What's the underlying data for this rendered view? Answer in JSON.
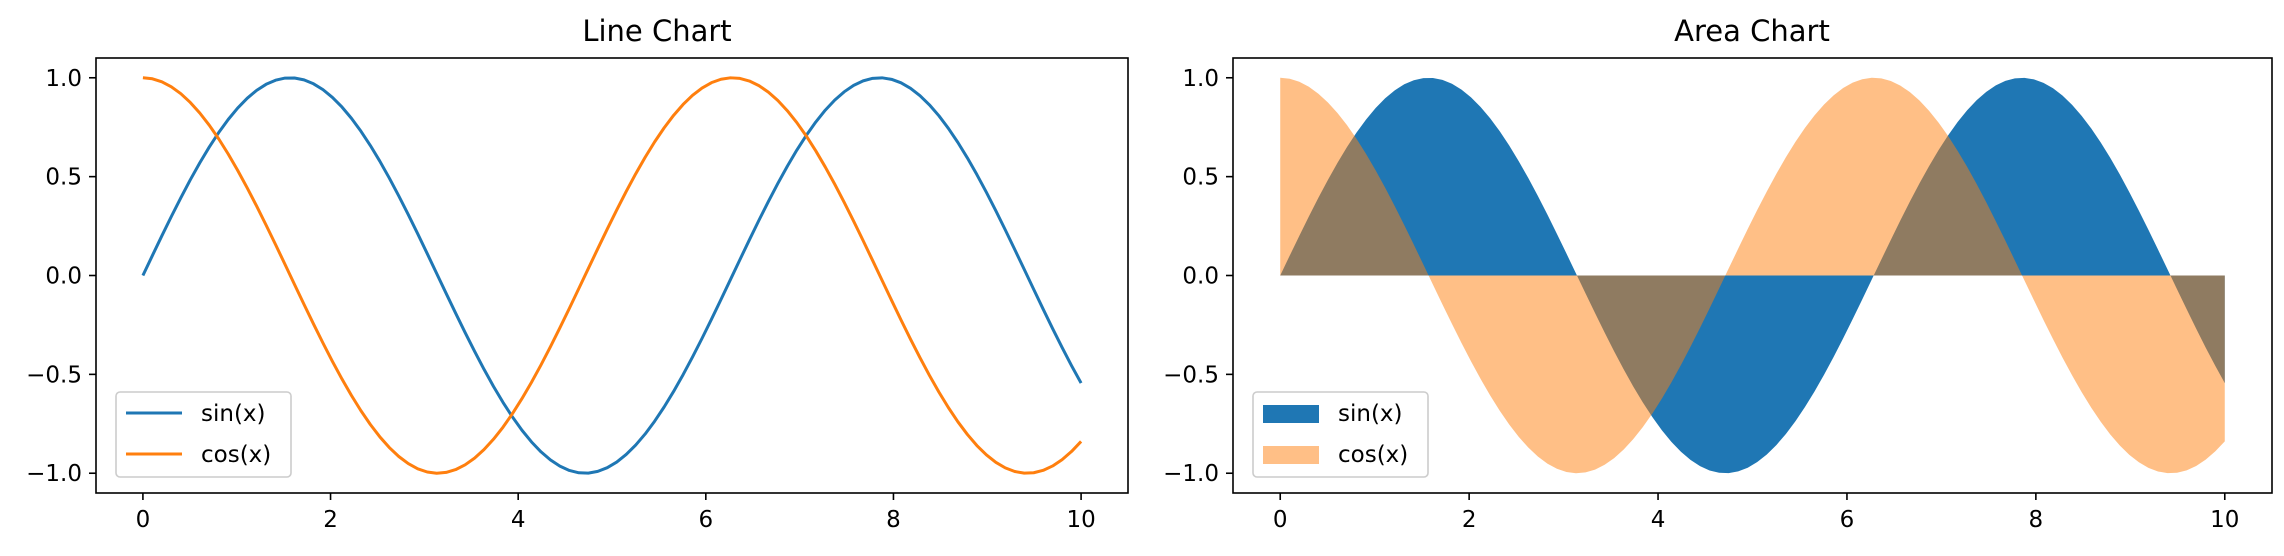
{
  "chart_data": [
    {
      "type": "line",
      "title": "Line Chart",
      "xlabel": "",
      "ylabel": "",
      "xlim": [
        -0.5,
        10.5
      ],
      "ylim": [
        -1.1,
        1.1
      ],
      "xticks": [
        0,
        2,
        4,
        6,
        8,
        10
      ],
      "xtick_labels": [
        "0",
        "2",
        "4",
        "6",
        "8",
        "10"
      ],
      "yticks": [
        -1.0,
        -0.5,
        0.0,
        0.5,
        1.0
      ],
      "ytick_labels": [
        "−1.0",
        "−0.5",
        "0.0",
        "0.5",
        "1.0"
      ],
      "grid": false,
      "legend_position": "lower-left",
      "x_domain": [
        0,
        10
      ],
      "sample_count": 100,
      "series": [
        {
          "name": "sin(x)",
          "function": "sin",
          "color": "#1f77b4"
        },
        {
          "name": "cos(x)",
          "function": "cos",
          "color": "#ff7f0e"
        }
      ]
    },
    {
      "type": "area",
      "title": "Area Chart",
      "xlabel": "",
      "ylabel": "",
      "xlim": [
        -0.5,
        10.5
      ],
      "ylim": [
        -1.1,
        1.1
      ],
      "xticks": [
        0,
        2,
        4,
        6,
        8,
        10
      ],
      "xtick_labels": [
        "0",
        "2",
        "4",
        "6",
        "8",
        "10"
      ],
      "yticks": [
        -1.0,
        -0.5,
        0.0,
        0.5,
        1.0
      ],
      "ytick_labels": [
        "−1.0",
        "−0.5",
        "0.0",
        "0.5",
        "1.0"
      ],
      "grid": false,
      "legend_position": "lower-left",
      "x_domain": [
        0,
        10
      ],
      "sample_count": 100,
      "series": [
        {
          "name": "sin(x)",
          "function": "sin",
          "color": "#1f77b4",
          "opacity": 1.0
        },
        {
          "name": "cos(x)",
          "function": "cos",
          "color": "#ff7f0e",
          "opacity": 0.5
        }
      ]
    }
  ]
}
